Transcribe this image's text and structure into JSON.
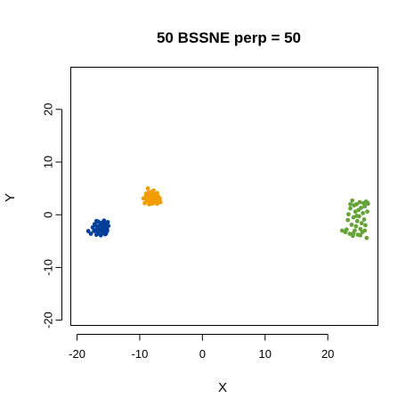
{
  "chart_data": {
    "type": "scatter",
    "title": "50 BSSNE perp = 50",
    "xlabel": "X",
    "ylabel": "Y",
    "xlim": [
      -21,
      28
    ],
    "ylim": [
      -21,
      28
    ],
    "x_ticks": [
      -20,
      -10,
      0,
      10,
      20
    ],
    "y_ticks": [
      -20,
      -10,
      0,
      10,
      20
    ],
    "grid": false,
    "series": [
      {
        "color": "#003f9a",
        "points": [
          [
            -17.8,
            -3.6
          ],
          [
            -17.5,
            -2.4
          ],
          [
            -17.3,
            -3.1
          ],
          [
            -17.2,
            -1.8
          ],
          [
            -17.0,
            -2.9
          ],
          [
            -16.9,
            -3.8
          ],
          [
            -16.8,
            -2.2
          ],
          [
            -16.6,
            -1.3
          ],
          [
            -16.5,
            -3.3
          ],
          [
            -16.4,
            -2.6
          ],
          [
            -16.3,
            -1.9
          ],
          [
            -16.2,
            -3.9
          ],
          [
            -16.1,
            -2.9
          ],
          [
            -16.0,
            -1.5
          ],
          [
            -15.9,
            -2.3
          ],
          [
            -15.8,
            -3.4
          ],
          [
            -15.7,
            -1.1
          ],
          [
            -15.6,
            -2.7
          ],
          [
            -15.5,
            -3.7
          ],
          [
            -15.4,
            -1.8
          ],
          [
            -15.3,
            -2.5
          ],
          [
            -15.2,
            -3.1
          ],
          [
            -15.1,
            -1.4
          ],
          [
            -15.0,
            -2.1
          ],
          [
            -16.7,
            -3.5
          ],
          [
            -16.0,
            -3.0
          ],
          [
            -15.6,
            -1.6
          ],
          [
            -17.0,
            -2.0
          ],
          [
            -16.3,
            -2.5
          ],
          [
            -15.4,
            -3.6
          ],
          [
            -18.2,
            -3.1
          ],
          [
            -16.9,
            -1.2
          ],
          [
            -15.8,
            -2.0
          ],
          [
            -16.5,
            -3.0
          ],
          [
            -15.2,
            -2.8
          ]
        ]
      },
      {
        "color": "#f39c00",
        "points": [
          [
            -9.4,
            3.1
          ],
          [
            -9.2,
            2.2
          ],
          [
            -9.0,
            4.0
          ],
          [
            -9.0,
            3.5
          ],
          [
            -8.8,
            2.6
          ],
          [
            -8.7,
            5.0
          ],
          [
            -8.6,
            3.0
          ],
          [
            -8.5,
            2.0
          ],
          [
            -8.4,
            3.8
          ],
          [
            -8.3,
            2.7
          ],
          [
            -8.2,
            4.3
          ],
          [
            -8.1,
            3.3
          ],
          [
            -8.0,
            2.1
          ],
          [
            -7.9,
            3.0
          ],
          [
            -7.8,
            4.6
          ],
          [
            -7.7,
            2.5
          ],
          [
            -7.6,
            3.6
          ],
          [
            -7.5,
            2.9
          ],
          [
            -7.4,
            2.2
          ],
          [
            -7.3,
            3.2
          ],
          [
            -7.2,
            4.1
          ],
          [
            -7.1,
            2.6
          ],
          [
            -7.0,
            3.4
          ],
          [
            -6.9,
            2.8
          ],
          [
            -6.8,
            3.1
          ],
          [
            -6.7,
            2.4
          ],
          [
            -8.9,
            2.9
          ],
          [
            -8.6,
            4.2
          ],
          [
            -8.0,
            3.6
          ],
          [
            -7.7,
            3.9
          ],
          [
            -7.4,
            3.5
          ],
          [
            -8.3,
            2.3
          ],
          [
            -7.9,
            2.6
          ],
          [
            -7.2,
            2.1
          ],
          [
            -8.5,
            3.4
          ]
        ]
      },
      {
        "color": "#66a339",
        "points": [
          [
            22.3,
            -3.0
          ],
          [
            22.8,
            -3.3
          ],
          [
            23.0,
            -2.8
          ],
          [
            23.2,
            -1.0
          ],
          [
            23.3,
            0.1
          ],
          [
            23.5,
            -3.6
          ],
          [
            23.6,
            1.2
          ],
          [
            23.8,
            -1.9
          ],
          [
            23.9,
            2.7
          ],
          [
            24.0,
            -4.0
          ],
          [
            24.1,
            -0.5
          ],
          [
            24.2,
            1.8
          ],
          [
            24.3,
            -3.0
          ],
          [
            24.4,
            0.6
          ],
          [
            24.5,
            -2.2
          ],
          [
            24.6,
            2.0
          ],
          [
            24.7,
            -1.2
          ],
          [
            24.8,
            -3.8
          ],
          [
            24.9,
            0.9
          ],
          [
            25.0,
            -0.3
          ],
          [
            25.1,
            2.4
          ],
          [
            25.2,
            -2.7
          ],
          [
            25.3,
            1.3
          ],
          [
            25.4,
            -1.6
          ],
          [
            25.5,
            -3.3
          ],
          [
            25.6,
            0.3
          ],
          [
            25.7,
            2.2
          ],
          [
            25.8,
            -0.9
          ],
          [
            25.9,
            1.6
          ],
          [
            26.0,
            -2.0
          ],
          [
            26.1,
            2.5
          ],
          [
            26.2,
            -4.4
          ],
          [
            26.3,
            0.6
          ],
          [
            26.4,
            2.1
          ],
          [
            24.1,
            -3.5
          ],
          [
            23.6,
            2.0
          ],
          [
            24.6,
            -0.2
          ],
          [
            25.2,
            -3.9
          ],
          [
            25.9,
            -3.0
          ],
          [
            26.3,
            2.3
          ]
        ]
      }
    ]
  }
}
